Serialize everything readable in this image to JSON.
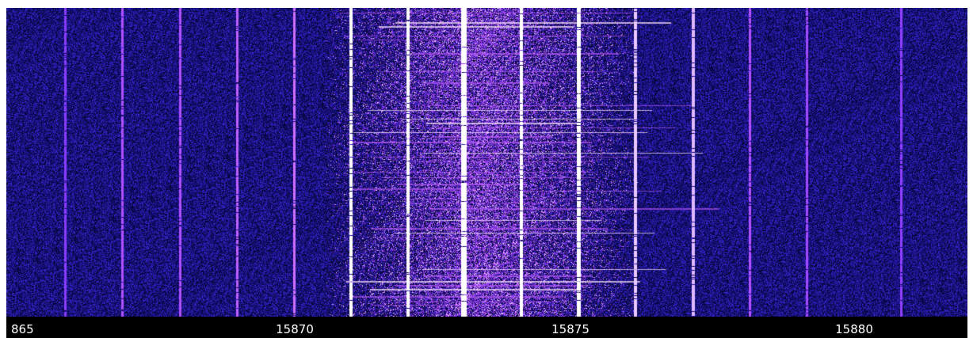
{
  "spectrogram": {
    "colors": {
      "background": "#0a0a5a",
      "noise_high": "#3a1fd0",
      "signal": "#b040ff",
      "signal_strong": "#ffffff"
    }
  },
  "frequency_scale": {
    "labels": [
      "865",
      "15870",
      "15875",
      "15880"
    ]
  }
}
